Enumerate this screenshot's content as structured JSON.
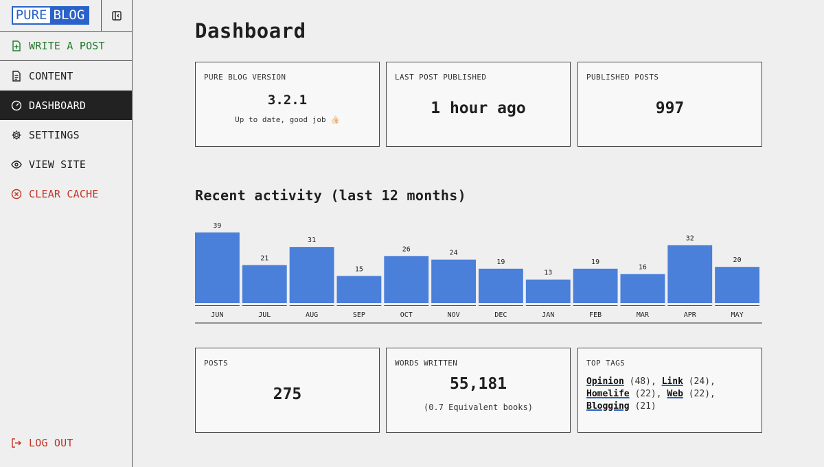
{
  "brand": {
    "part1": "PURE",
    "part2": "BLOG"
  },
  "nav": {
    "write": "WRITE A POST",
    "content": "CONTENT",
    "dashboard": "DASHBOARD",
    "settings": "SETTINGS",
    "view_site": "VIEW SITE",
    "clear_cache": "CLEAR CACHE",
    "logout": "LOG OUT"
  },
  "page_title": "Dashboard",
  "stats_top": {
    "version": {
      "label": "PURE BLOG VERSION",
      "value": "3.2.1",
      "note": "Up to date, good job 👍🏻"
    },
    "last_post": {
      "label": "LAST POST PUBLISHED",
      "value": "1 hour ago"
    },
    "published": {
      "label": "PUBLISHED POSTS",
      "value": "997"
    }
  },
  "activity_title": "Recent activity (last 12 months)",
  "chart_data": {
    "type": "bar",
    "categories": [
      "JUN",
      "JUL",
      "AUG",
      "SEP",
      "OCT",
      "NOV",
      "DEC",
      "JAN",
      "FEB",
      "MAR",
      "APR",
      "MAY"
    ],
    "values": [
      39,
      21,
      31,
      15,
      26,
      24,
      19,
      13,
      19,
      16,
      32,
      20
    ],
    "bar_color": "#4a7fda",
    "ylim": [
      0,
      39
    ]
  },
  "stats_bottom": {
    "posts": {
      "label": "POSTS",
      "value": "275"
    },
    "words": {
      "label": "WORDS WRITTEN",
      "value": "55,181",
      "note": "(0.7 Equivalent books)"
    },
    "tags": {
      "label": "TOP TAGS",
      "items": [
        {
          "name": "Opinion",
          "count": "(48)"
        },
        {
          "name": "Link",
          "count": "(24)"
        },
        {
          "name": "Homelife",
          "count": "(22)"
        },
        {
          "name": "Web",
          "count": "(22)"
        },
        {
          "name": "Blogging",
          "count": "(21)"
        }
      ]
    }
  },
  "colors": {
    "accent": "#2a62c9",
    "write": "#1f7a2a",
    "danger": "#c23325",
    "active_bg": "#222222"
  }
}
